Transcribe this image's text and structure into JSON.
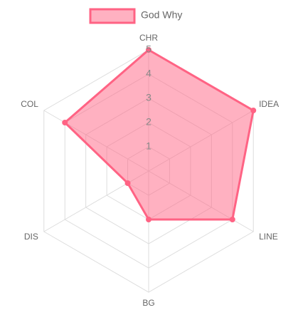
{
  "chart_data": {
    "type": "radar",
    "categories": [
      "CHR",
      "IDEA",
      "LINE",
      "BG",
      "DIS",
      "COL"
    ],
    "series": [
      {
        "name": "God Why",
        "color": "#ff6384",
        "values": [
          5,
          5,
          4,
          2,
          1,
          4
        ]
      }
    ],
    "rlim": [
      0,
      5
    ],
    "rticks": [
      1,
      2,
      3,
      4,
      5
    ],
    "grid": true,
    "legend": "top"
  }
}
